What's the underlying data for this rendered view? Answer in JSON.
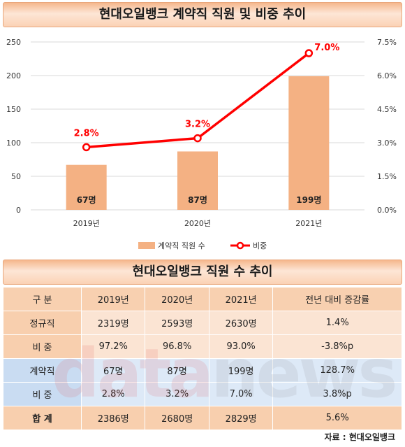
{
  "chart": {
    "title": "현대오일뱅크 계약직 직원 및 비중 추이",
    "legend_bar": "계약직 직원 수",
    "legend_line": "비중",
    "y_left_ticks": [
      "0",
      "50",
      "100",
      "150",
      "200",
      "250"
    ],
    "y_right_ticks": [
      "0.0%",
      "1.5%",
      "3.0%",
      "4.5%",
      "6.0%",
      "7.5%"
    ],
    "bar_labels": [
      "67명",
      "87명",
      "199명"
    ],
    "line_labels": [
      "2.8%",
      "3.2%",
      "7.0%"
    ],
    "colors": {
      "bar": "#f4b183",
      "line": "#ff0000"
    }
  },
  "chart_data": {
    "type": "bar",
    "title": "현대오일뱅크 계약직 직원 및 비중 추이",
    "categories": [
      "2019년",
      "2020년",
      "2021년"
    ],
    "series": [
      {
        "name": "계약직 직원 수",
        "type": "bar",
        "axis": "left",
        "values": [
          67,
          87,
          199
        ]
      },
      {
        "name": "비중",
        "type": "line",
        "axis": "right",
        "values": [
          2.8,
          3.2,
          7.0
        ],
        "unit": "%"
      }
    ],
    "ylim": [
      0,
      250
    ],
    "ylim_right": [
      0,
      7.5
    ],
    "legend": "bottom",
    "grid": true
  },
  "table": {
    "title": "현대오일뱅크 직원 수 추이",
    "header": [
      "구  분",
      "2019년",
      "2020년",
      "2021년",
      "전년 대비 증감률"
    ],
    "rows": [
      [
        "정규직",
        "2319명",
        "2593명",
        "2630명",
        "1.4%"
      ],
      [
        "비  중",
        "97.2%",
        "96.8%",
        "93.0%",
        "-3.8%p"
      ],
      [
        "계약직",
        "67명",
        "87명",
        "199명",
        "128.7%"
      ],
      [
        "비  중",
        "2.8%",
        "3.2%",
        "7.0%",
        "3.8%p"
      ],
      [
        "합  계",
        "2386명",
        "2680명",
        "2829명",
        "5.6%"
      ]
    ]
  },
  "watermark": {
    "a": "data",
    "b": "news"
  },
  "source": "자료 : 현대오일뱅크"
}
